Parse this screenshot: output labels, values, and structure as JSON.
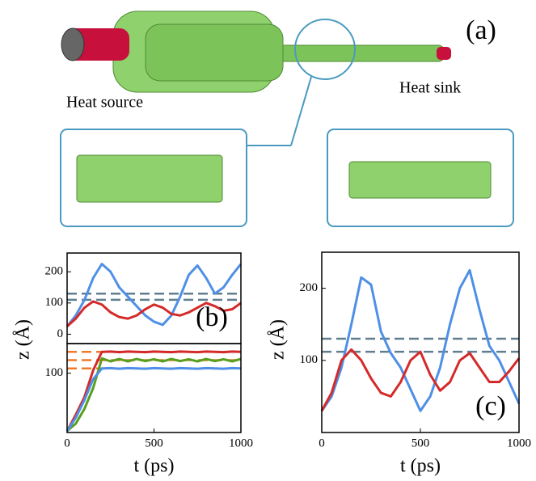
{
  "illustration": {
    "label": "(a)",
    "source": "Heat source",
    "sink": "Heat sink"
  },
  "chart_data": [
    {
      "type": "line",
      "panel_label": "(b)",
      "ylabel": "z (Å)",
      "x": [
        0,
        50,
        100,
        150,
        200,
        250,
        300,
        350,
        400,
        450,
        500,
        550,
        600,
        650,
        700,
        750,
        800,
        850,
        900,
        950,
        1000
      ],
      "xlim": [
        0,
        1000
      ],
      "ylim": [
        -30,
        260
      ],
      "yticks": [
        0,
        100,
        200
      ],
      "hlines": [
        130,
        110
      ],
      "hline_color": "#5f7f8f",
      "series": [
        {
          "color": "#4f8fe6",
          "values": [
            25,
            60,
            110,
            180,
            225,
            200,
            150,
            120,
            90,
            60,
            40,
            30,
            60,
            120,
            190,
            220,
            180,
            130,
            150,
            190,
            225
          ]
        },
        {
          "color": "#d42a2a",
          "values": [
            25,
            50,
            85,
            105,
            95,
            70,
            55,
            50,
            60,
            80,
            95,
            85,
            65,
            60,
            70,
            85,
            100,
            90,
            75,
            80,
            100
          ]
        }
      ]
    },
    {
      "type": "line",
      "xlabel": "t (ps)",
      "x": [
        0,
        50,
        100,
        150,
        200,
        250,
        300,
        350,
        400,
        450,
        500,
        550,
        600,
        650,
        700,
        750,
        800,
        850,
        900,
        950,
        1000
      ],
      "xlim": [
        0,
        1000
      ],
      "xticks": [
        0,
        500,
        1000
      ],
      "ylim": [
        -100,
        200
      ],
      "yticks": [
        100
      ],
      "hlines": [
        172,
        144,
        116
      ],
      "hline_color": "#f07a2a",
      "series": [
        {
          "color": "#d42a2a",
          "values": [
            -95,
            -40,
            20,
            110,
            172,
            173,
            171,
            173,
            172,
            171,
            173,
            172,
            171,
            173,
            172,
            171,
            173,
            172,
            171,
            173,
            172
          ]
        },
        {
          "color": "#5a9e1e",
          "values": [
            -95,
            -70,
            -20,
            50,
            150,
            140,
            148,
            140,
            148,
            141,
            147,
            140,
            148,
            141,
            147,
            140,
            148,
            141,
            147,
            140,
            148
          ]
        },
        {
          "color": "#4f8fe6",
          "values": [
            -95,
            -50,
            10,
            80,
            116,
            117,
            115,
            117,
            116,
            115,
            117,
            116,
            115,
            117,
            116,
            115,
            117,
            116,
            115,
            117,
            116
          ]
        }
      ]
    },
    {
      "type": "line",
      "panel_label": "(c)",
      "ylabel": "z (Å)",
      "xlabel": "t (ps)",
      "x": [
        0,
        50,
        100,
        150,
        200,
        250,
        300,
        350,
        400,
        450,
        500,
        550,
        600,
        650,
        700,
        750,
        800,
        850,
        900,
        950,
        1000
      ],
      "xlim": [
        0,
        1000
      ],
      "xticks": [
        0,
        500,
        1000
      ],
      "ylim": [
        0,
        250
      ],
      "yticks": [
        100,
        200
      ],
      "hlines": [
        130,
        112
      ],
      "hline_color": "#5f7f8f",
      "series": [
        {
          "color": "#4f8fe6",
          "values": [
            30,
            50,
            90,
            150,
            215,
            205,
            140,
            110,
            90,
            60,
            30,
            50,
            90,
            150,
            200,
            225,
            170,
            120,
            100,
            70,
            40
          ]
        },
        {
          "color": "#d42a2a",
          "values": [
            30,
            55,
            100,
            115,
            100,
            75,
            55,
            50,
            70,
            100,
            112,
            80,
            58,
            70,
            100,
            110,
            90,
            70,
            70,
            85,
            103
          ]
        }
      ]
    }
  ]
}
